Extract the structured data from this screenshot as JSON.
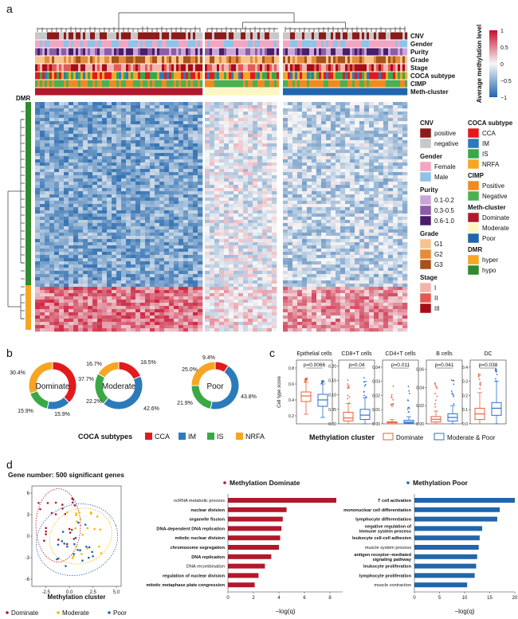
{
  "panels": {
    "a": "a",
    "b": "b",
    "c": "c",
    "d": "d"
  },
  "heatmap": {
    "row_labels": [
      "CNV",
      "Gender",
      "Purity",
      "Grade",
      "Stage",
      "COCA subtype",
      "CIMP",
      "Meth-cluster"
    ],
    "dmr_label": "DMR",
    "colorbar": {
      "title": "Average methylation level",
      "ticks": [
        "1",
        "0.5",
        "0",
        "−0.5",
        "−1"
      ],
      "values": [
        1,
        0.5,
        0,
        -0.5,
        -1
      ],
      "high": "#c8102e",
      "mid": "#f7f7f7",
      "low": "#2166ac"
    },
    "groups": [
      {
        "name": "Dominate",
        "share": 0.43
      },
      {
        "name": "Moderate",
        "share": 0.19
      },
      {
        "name": "Poor",
        "share": 0.38
      }
    ],
    "dmr_split": {
      "hyper_share": 0.22
    }
  },
  "legend": {
    "left": [
      {
        "title": "CNV",
        "items": [
          {
            "label": "positive",
            "color": "#8b1a1a"
          },
          {
            "label": "negative",
            "color": "#c8c8c8"
          }
        ]
      },
      {
        "title": "Gender",
        "items": [
          {
            "label": "Female",
            "color": "#f4a6c0"
          },
          {
            "label": "Male",
            "color": "#8fc3e8"
          }
        ]
      },
      {
        "title": "Purity",
        "items": [
          {
            "label": "0.1-0.2",
            "color": "#c9a6d6"
          },
          {
            "label": "0.3-0.5",
            "color": "#8e5ba8"
          },
          {
            "label": "0.6-1.0",
            "color": "#4b1c6b"
          }
        ]
      },
      {
        "title": "Grade",
        "items": [
          {
            "label": "G1",
            "color": "#f6c48c"
          },
          {
            "label": "G2",
            "color": "#e58b3a"
          },
          {
            "label": "G3",
            "color": "#a6521a"
          }
        ]
      },
      {
        "title": "Stage",
        "items": [
          {
            "label": "I",
            "color": "#f4b3ac"
          },
          {
            "label": "II",
            "color": "#e25b52"
          },
          {
            "label": "III",
            "color": "#a50f15"
          }
        ]
      }
    ],
    "right": [
      {
        "title": "COCA subtype",
        "items": [
          {
            "label": "CCA",
            "color": "#e31a1c"
          },
          {
            "label": "IM",
            "color": "#2b7bba"
          },
          {
            "label": "IS",
            "color": "#3aa845"
          },
          {
            "label": "NRFA",
            "color": "#f5a623"
          }
        ]
      },
      {
        "title": "CIMP",
        "items": [
          {
            "label": "Positive",
            "color": "#f08a1c"
          },
          {
            "label": "Negative",
            "color": "#4caf50"
          }
        ]
      },
      {
        "title": "Meth-cluster",
        "items": [
          {
            "label": "Dominate",
            "color": "#b2182b"
          },
          {
            "label": "Moderate",
            "color": "#fff6c2"
          },
          {
            "label": "Poor",
            "color": "#2166ac"
          }
        ]
      },
      {
        "title": "DMR",
        "items": [
          {
            "label": "hyper",
            "color": "#f5a623"
          },
          {
            "label": "hypo",
            "color": "#2e8b2e"
          }
        ]
      }
    ]
  },
  "donuts": {
    "legend_title": "COCA subtypes",
    "legend": [
      {
        "label": "CCA",
        "color": "#e31a1c"
      },
      {
        "label": "IM",
        "color": "#2b7bba"
      },
      {
        "label": "IS",
        "color": "#3aa845"
      },
      {
        "label": "NRFA",
        "color": "#f5a623"
      }
    ],
    "charts": [
      {
        "name": "Dominate",
        "values": [
          37.7,
          15.9,
          15.9,
          30.4
        ],
        "labels": [
          "37.7%",
          "15.9%",
          "15.9%",
          "30.4%"
        ]
      },
      {
        "name": "Moderate",
        "values": [
          18.5,
          42.6,
          22.2,
          16.7
        ],
        "labels": [
          "18.5%",
          "42.6%",
          "22.2%",
          "16.7%"
        ]
      },
      {
        "name": "Poor",
        "values": [
          9.4,
          43.8,
          21.9,
          25.0
        ],
        "labels": [
          "9.4%",
          "43.8%",
          "21.9%",
          "25.0%"
        ]
      }
    ]
  },
  "boxplots": {
    "ylabel": "Cell type score",
    "legend_title": "Methylation cluster",
    "legend": [
      {
        "label": "Dominate",
        "color": "#e8603c"
      },
      {
        "label": "Moderate & Poor",
        "color": "#2f6fd1"
      }
    ],
    "panels": [
      {
        "title": "Epithelial cells",
        "p": "p=0.0066",
        "ticks": [
          "0.8",
          "0.6",
          "0.4",
          "0.2"
        ],
        "tick_values": [
          0.8,
          0.6,
          0.4,
          0.2
        ],
        "ymin": 0.1,
        "ymax": 0.9,
        "groups": [
          {
            "q1": 0.38,
            "med": 0.45,
            "q3": 0.5,
            "lo": 0.22,
            "hi": 0.62
          },
          {
            "q1": 0.32,
            "med": 0.4,
            "q3": 0.47,
            "lo": 0.18,
            "hi": 0.6
          }
        ]
      },
      {
        "title": "CD8+T cells",
        "p": "p=0.04",
        "ticks": [
          "0.20",
          "0.15",
          "0.10",
          "0.05",
          "0.00"
        ],
        "tick_values": [
          0.2,
          0.15,
          0.1,
          0.05,
          0
        ],
        "ymin": 0,
        "ymax": 0.22,
        "groups": [
          {
            "q1": 0.01,
            "med": 0.02,
            "q3": 0.04,
            "lo": 0.0,
            "hi": 0.07
          },
          {
            "q1": 0.015,
            "med": 0.03,
            "q3": 0.05,
            "lo": 0.0,
            "hi": 0.09
          }
        ]
      },
      {
        "title": "CD4+T cells",
        "p": "p=0.011",
        "ticks": [
          "0.04",
          "0.03",
          "0.02",
          "0.01",
          "0.00"
        ],
        "tick_values": [
          0.04,
          0.03,
          0.02,
          0.01,
          0
        ],
        "ymin": 0,
        "ymax": 0.045,
        "groups": [
          {
            "q1": 0.0,
            "med": 0.0008,
            "q3": 0.0015,
            "lo": 0.0,
            "hi": 0.003
          },
          {
            "q1": 0.0005,
            "med": 0.0012,
            "q3": 0.0025,
            "lo": 0.0,
            "hi": 0.005
          }
        ]
      },
      {
        "title": "B cells",
        "p": "p=0.041",
        "ticks": [
          "0.06",
          "0.04",
          "0.02",
          "0.00"
        ],
        "tick_values": [
          0.06,
          0.04,
          0.02,
          0
        ],
        "ymin": 0,
        "ymax": 0.07,
        "groups": [
          {
            "q1": 0.002,
            "med": 0.005,
            "q3": 0.008,
            "lo": 0.0,
            "hi": 0.014
          },
          {
            "q1": 0.003,
            "med": 0.007,
            "q3": 0.011,
            "lo": 0.0,
            "hi": 0.02
          }
        ]
      },
      {
        "title": "DC",
        "p": "p=0.038",
        "ticks": [
          "0.4",
          "0.3",
          "0.2",
          "0.1",
          "0.0"
        ],
        "tick_values": [
          0.4,
          0.3,
          0.2,
          0.1,
          0
        ],
        "ymin": 0,
        "ymax": 0.45,
        "groups": [
          {
            "q1": 0.03,
            "med": 0.07,
            "q3": 0.11,
            "lo": 0.0,
            "hi": 0.22
          },
          {
            "q1": 0.06,
            "med": 0.11,
            "q3": 0.15,
            "lo": 0.0,
            "hi": 0.3
          }
        ]
      }
    ]
  },
  "panel_d": {
    "title": "Gene number: 500 significant genes",
    "tsne": {
      "xlabel": "Methylation cluster",
      "xticks": [
        "-2.5",
        "0.0",
        "2.5",
        "5.0"
      ],
      "xtick_values": [
        -2.5,
        0,
        2.5,
        5
      ],
      "yticks": [
        "6",
        "3",
        "0",
        "-3",
        "-6"
      ],
      "ytick_values": [
        6,
        3,
        0,
        -3,
        -6
      ],
      "legend": [
        {
          "label": "Dominate",
          "color": "#b2182b"
        },
        {
          "label": "Moderate",
          "color": "#f2b705"
        },
        {
          "label": "Poor",
          "color": "#2166ac"
        }
      ]
    },
    "dominate": {
      "title": "Methylation Dominate",
      "color": "#b2182b",
      "xlabel": "−log(q)",
      "xticks": [
        "0",
        "2",
        "4",
        "6",
        "8"
      ],
      "xtick_values": [
        0,
        2,
        4,
        6,
        8
      ],
      "xmax": 9,
      "terms": [
        {
          "label": "ncRNA metabolic process",
          "value": 8.5,
          "bold": false
        },
        {
          "label": "nuclear division",
          "value": 4.6,
          "bold": true
        },
        {
          "label": "organelle fission",
          "value": 4.3,
          "bold": true
        },
        {
          "label": "DNA-dependent DNA replication",
          "value": 4.2,
          "bold": true
        },
        {
          "label": "mitotic nuclear division",
          "value": 4.1,
          "bold": true
        },
        {
          "label": "chromosome segregation",
          "value": 4.0,
          "bold": true
        },
        {
          "label": "DNA replication",
          "value": 3.4,
          "bold": true
        },
        {
          "label": "DNA recombination",
          "value": 2.9,
          "bold": false
        },
        {
          "label": "regulation of nuclear division",
          "value": 2.4,
          "bold": true
        },
        {
          "label": "mitotic metaphase plate congression",
          "value": 2.1,
          "bold": true
        }
      ]
    },
    "poor": {
      "title": "Methylation Poor",
      "color": "#2166ac",
      "xlabel": "−log(q)",
      "xticks": [
        "0",
        "5",
        "10",
        "15",
        "20"
      ],
      "xtick_values": [
        0,
        5,
        10,
        15,
        20
      ],
      "xmax": 20,
      "terms": [
        {
          "label": "T cell activation",
          "value": 20,
          "bold": true
        },
        {
          "label": "mononuclear cell differentiation",
          "value": 17,
          "bold": true
        },
        {
          "label": "lymphocyte differentiation",
          "value": 16.5,
          "bold": true
        },
        {
          "label": "negative regulation of immune system process",
          "value": 13.5,
          "bold": true
        },
        {
          "label": "leukocyte cell-cell adhesion",
          "value": 13,
          "bold": true
        },
        {
          "label": "muscle system process",
          "value": 12.8,
          "bold": false
        },
        {
          "label": "antigen receptor−mediated signaling pathway",
          "value": 12.5,
          "bold": true
        },
        {
          "label": "leukocyte proliferation",
          "value": 12.3,
          "bold": true
        },
        {
          "label": "lymphocyte proliferation",
          "value": 12,
          "bold": true
        },
        {
          "label": "muscle contraction",
          "value": 10.5,
          "bold": false
        }
      ]
    }
  }
}
